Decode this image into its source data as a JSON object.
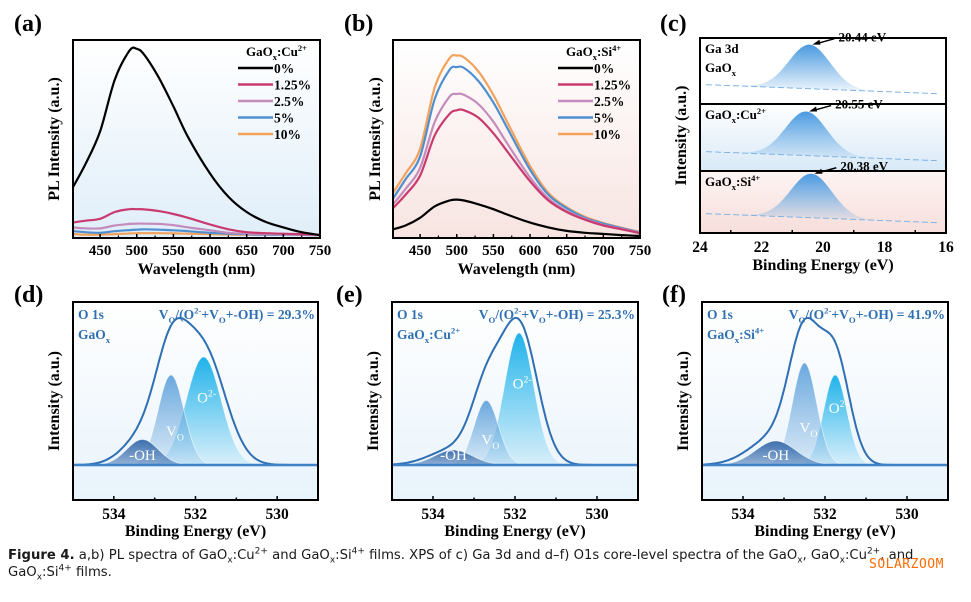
{
  "figure": {
    "caption": {
      "label": "Figure 4.",
      "text_parts": [
        {
          "t": " a,b) PL spectra of GaO"
        },
        {
          "sub": "x"
        },
        {
          "t": ":Cu"
        },
        {
          "sup": "2+"
        },
        {
          "t": " and GaO"
        },
        {
          "sub": "x"
        },
        {
          "t": ":Si"
        },
        {
          "sup": "4+"
        },
        {
          "t": " films. XPS of c) Ga 3d and d–f) O1s core-level spectra of the GaO"
        },
        {
          "sub": "x"
        },
        {
          "t": ", GaO"
        },
        {
          "sub": "x"
        },
        {
          "t": ":Cu"
        },
        {
          "sup": "2+"
        },
        {
          "t": ", and GaO"
        },
        {
          "sub": "x"
        },
        {
          "t": ":Si"
        },
        {
          "sup": "4+"
        },
        {
          "t": " films."
        }
      ]
    },
    "watermark": "SOLARZOOM"
  },
  "chart_data": [
    {
      "panel": "(a)",
      "type": "line",
      "title": "",
      "xlabel": "Wavelength (nm)",
      "ylabel": "PL Intensity (a.u.)",
      "xlim": [
        413,
        750
      ],
      "ylim": [
        0,
        1.0
      ],
      "xticks": [
        450,
        500,
        550,
        600,
        650,
        700,
        750
      ],
      "legend_title": "GaOx:Cu2+",
      "legend_position": "top-right",
      "background": [
        "#ffffff",
        "#e3f0fa"
      ],
      "x": [
        413,
        430,
        450,
        470,
        490,
        500,
        510,
        530,
        550,
        570,
        600,
        625,
        650,
        675,
        700,
        725,
        750
      ],
      "series": [
        {
          "name": "0%",
          "color": "#000000",
          "values": [
            0.26,
            0.38,
            0.55,
            0.82,
            0.97,
            0.98,
            0.95,
            0.83,
            0.68,
            0.52,
            0.33,
            0.21,
            0.13,
            0.08,
            0.05,
            0.025,
            0.01
          ]
        },
        {
          "name": "1.25%",
          "color": "#c93a6e",
          "values": [
            0.075,
            0.085,
            0.095,
            0.13,
            0.145,
            0.145,
            0.144,
            0.135,
            0.12,
            0.1,
            0.065,
            0.04,
            0.025,
            0.02,
            0.017,
            0.015,
            0.012
          ]
        },
        {
          "name": "2.5%",
          "color": "#c48cbd",
          "values": [
            0.05,
            0.045,
            0.045,
            0.06,
            0.068,
            0.07,
            0.07,
            0.068,
            0.062,
            0.05,
            0.035,
            0.022,
            0.017,
            0.015,
            0.014,
            0.012,
            0.01
          ]
        },
        {
          "name": "5%",
          "color": "#4f8fcf",
          "values": [
            0.03,
            0.025,
            0.022,
            0.03,
            0.036,
            0.038,
            0.04,
            0.038,
            0.035,
            0.03,
            0.022,
            0.017,
            0.014,
            0.012,
            0.012,
            0.011,
            0.01
          ]
        },
        {
          "name": "10%",
          "color": "#f2a25a",
          "values": [
            0.015,
            0.012,
            0.012,
            0.015,
            0.018,
            0.02,
            0.02,
            0.02,
            0.019,
            0.017,
            0.015,
            0.013,
            0.012,
            0.012,
            0.014,
            0.012,
            0.008
          ]
        }
      ]
    },
    {
      "panel": "(b)",
      "type": "line",
      "title": "",
      "xlabel": "Wavelength (nm)",
      "ylabel": "PL Intensity (a.u.)",
      "xlim": [
        413,
        750
      ],
      "ylim": [
        0,
        1.0
      ],
      "xticks": [
        450,
        500,
        550,
        600,
        650,
        700,
        750
      ],
      "legend_title": "GaOx:Si4+",
      "legend_position": "top-right",
      "background": [
        "#ffffff",
        "#f8e7e4"
      ],
      "x": [
        413,
        430,
        450,
        470,
        490,
        500,
        510,
        530,
        550,
        570,
        600,
        625,
        650,
        675,
        700,
        725,
        750
      ],
      "series": [
        {
          "name": "0%",
          "color": "#000000",
          "values": [
            0.04,
            0.06,
            0.1,
            0.16,
            0.19,
            0.195,
            0.19,
            0.17,
            0.145,
            0.115,
            0.075,
            0.05,
            0.032,
            0.022,
            0.016,
            0.01,
            0.005
          ]
        },
        {
          "name": "1.25%",
          "color": "#c93a6e",
          "values": [
            0.15,
            0.22,
            0.32,
            0.53,
            0.64,
            0.66,
            0.66,
            0.62,
            0.54,
            0.44,
            0.29,
            0.19,
            0.13,
            0.09,
            0.06,
            0.04,
            0.02
          ]
        },
        {
          "name": "2.5%",
          "color": "#c48cbd",
          "values": [
            0.17,
            0.25,
            0.36,
            0.6,
            0.73,
            0.745,
            0.74,
            0.69,
            0.6,
            0.48,
            0.31,
            0.2,
            0.135,
            0.095,
            0.063,
            0.042,
            0.022
          ]
        },
        {
          "name": "5%",
          "color": "#4f8fcf",
          "values": [
            0.2,
            0.3,
            0.42,
            0.72,
            0.87,
            0.885,
            0.88,
            0.81,
            0.7,
            0.56,
            0.35,
            0.22,
            0.15,
            0.1,
            0.07,
            0.046,
            0.024
          ]
        },
        {
          "name": "10%",
          "color": "#f2a25a",
          "values": [
            0.23,
            0.33,
            0.46,
            0.78,
            0.93,
            0.945,
            0.935,
            0.86,
            0.74,
            0.59,
            0.37,
            0.23,
            0.155,
            0.105,
            0.073,
            0.048,
            0.026
          ]
        }
      ]
    },
    {
      "panel": "(c)",
      "type": "area",
      "title": "",
      "xlabel": "Binding Energy (eV)",
      "ylabel": "Intensity (a.u.)",
      "xlim": [
        24,
        16
      ],
      "xticks": [
        24,
        22,
        20,
        18,
        16
      ],
      "subplots": [
        {
          "label_lines": [
            "Ga 3d",
            "GaOx"
          ],
          "peak_ev": 20.44,
          "annotation": "20.44 eV",
          "background": "#ffffff"
        },
        {
          "label_lines": [
            "GaOx:Cu2+"
          ],
          "peak_ev": 20.55,
          "annotation": "20.55 eV",
          "background": "#e3f0fa"
        },
        {
          "label_lines": [
            "GaOx:Si4+"
          ],
          "peak_ev": 20.38,
          "annotation": "20.38 eV",
          "background": "#f8e7e4"
        }
      ],
      "fill_color": "#4a9ae0"
    },
    {
      "panel": "(d)",
      "type": "area",
      "xlabel": "Binding Energy (eV)",
      "ylabel": "Intensity (a.u.)",
      "xlim": [
        535,
        529
      ],
      "xticks": [
        534,
        532,
        530
      ],
      "label_lines": [
        "O 1s",
        "GaOx"
      ],
      "ratio_text": "VO/(O2-+VO+-OH) = 29.3%",
      "envelope_color": "#2f6fb3",
      "components": [
        {
          "name": "-OH",
          "center": 533.3,
          "height": 0.17,
          "width": 0.55,
          "color": "#3d6fae"
        },
        {
          "name": "VO",
          "center": 532.6,
          "height": 0.6,
          "width": 0.45,
          "color": "#6aa8dd"
        },
        {
          "name": "O2-",
          "center": 531.8,
          "height": 0.72,
          "width": 0.6,
          "color": "#22b4e8"
        }
      ],
      "envelope_peak": 532.3
    },
    {
      "panel": "(e)",
      "type": "area",
      "xlabel": "Binding Energy (eV)",
      "ylabel": "Intensity (a.u.)",
      "xlim": [
        535,
        529
      ],
      "xticks": [
        534,
        532,
        530
      ],
      "label_lines": [
        "O 1s",
        "GaOx:Cu2+"
      ],
      "ratio_text": "VO/(O2-+VO+-OH) = 25.3%",
      "envelope_color": "#2f6fb3",
      "components": [
        {
          "name": "-OH",
          "center": 533.5,
          "height": 0.1,
          "width": 0.65,
          "color": "#3d6fae"
        },
        {
          "name": "VO",
          "center": 532.7,
          "height": 0.43,
          "width": 0.42,
          "color": "#6aa8dd"
        },
        {
          "name": "O2-",
          "center": 531.9,
          "height": 0.88,
          "width": 0.5,
          "color": "#22b4e8"
        }
      ],
      "envelope_peak": 532.1
    },
    {
      "panel": "(f)",
      "type": "area",
      "xlabel": "Binding Energy (eV)",
      "ylabel": "Intensity (a.u.)",
      "xlim": [
        535,
        529
      ],
      "xticks": [
        534,
        532,
        530
      ],
      "label_lines": [
        "O 1s",
        "GaOx:Si4+"
      ],
      "ratio_text": "VO/(O2-+VO+-OH) = 41.9%",
      "envelope_color": "#2f6fb3",
      "components": [
        {
          "name": "-OH",
          "center": 533.2,
          "height": 0.16,
          "width": 0.7,
          "color": "#3d6fae"
        },
        {
          "name": "VO",
          "center": 532.5,
          "height": 0.68,
          "width": 0.42,
          "color": "#6aa8dd"
        },
        {
          "name": "O2-",
          "center": 531.75,
          "height": 0.6,
          "width": 0.4,
          "color": "#22b4e8"
        }
      ],
      "envelope_peak": 532.3
    }
  ]
}
